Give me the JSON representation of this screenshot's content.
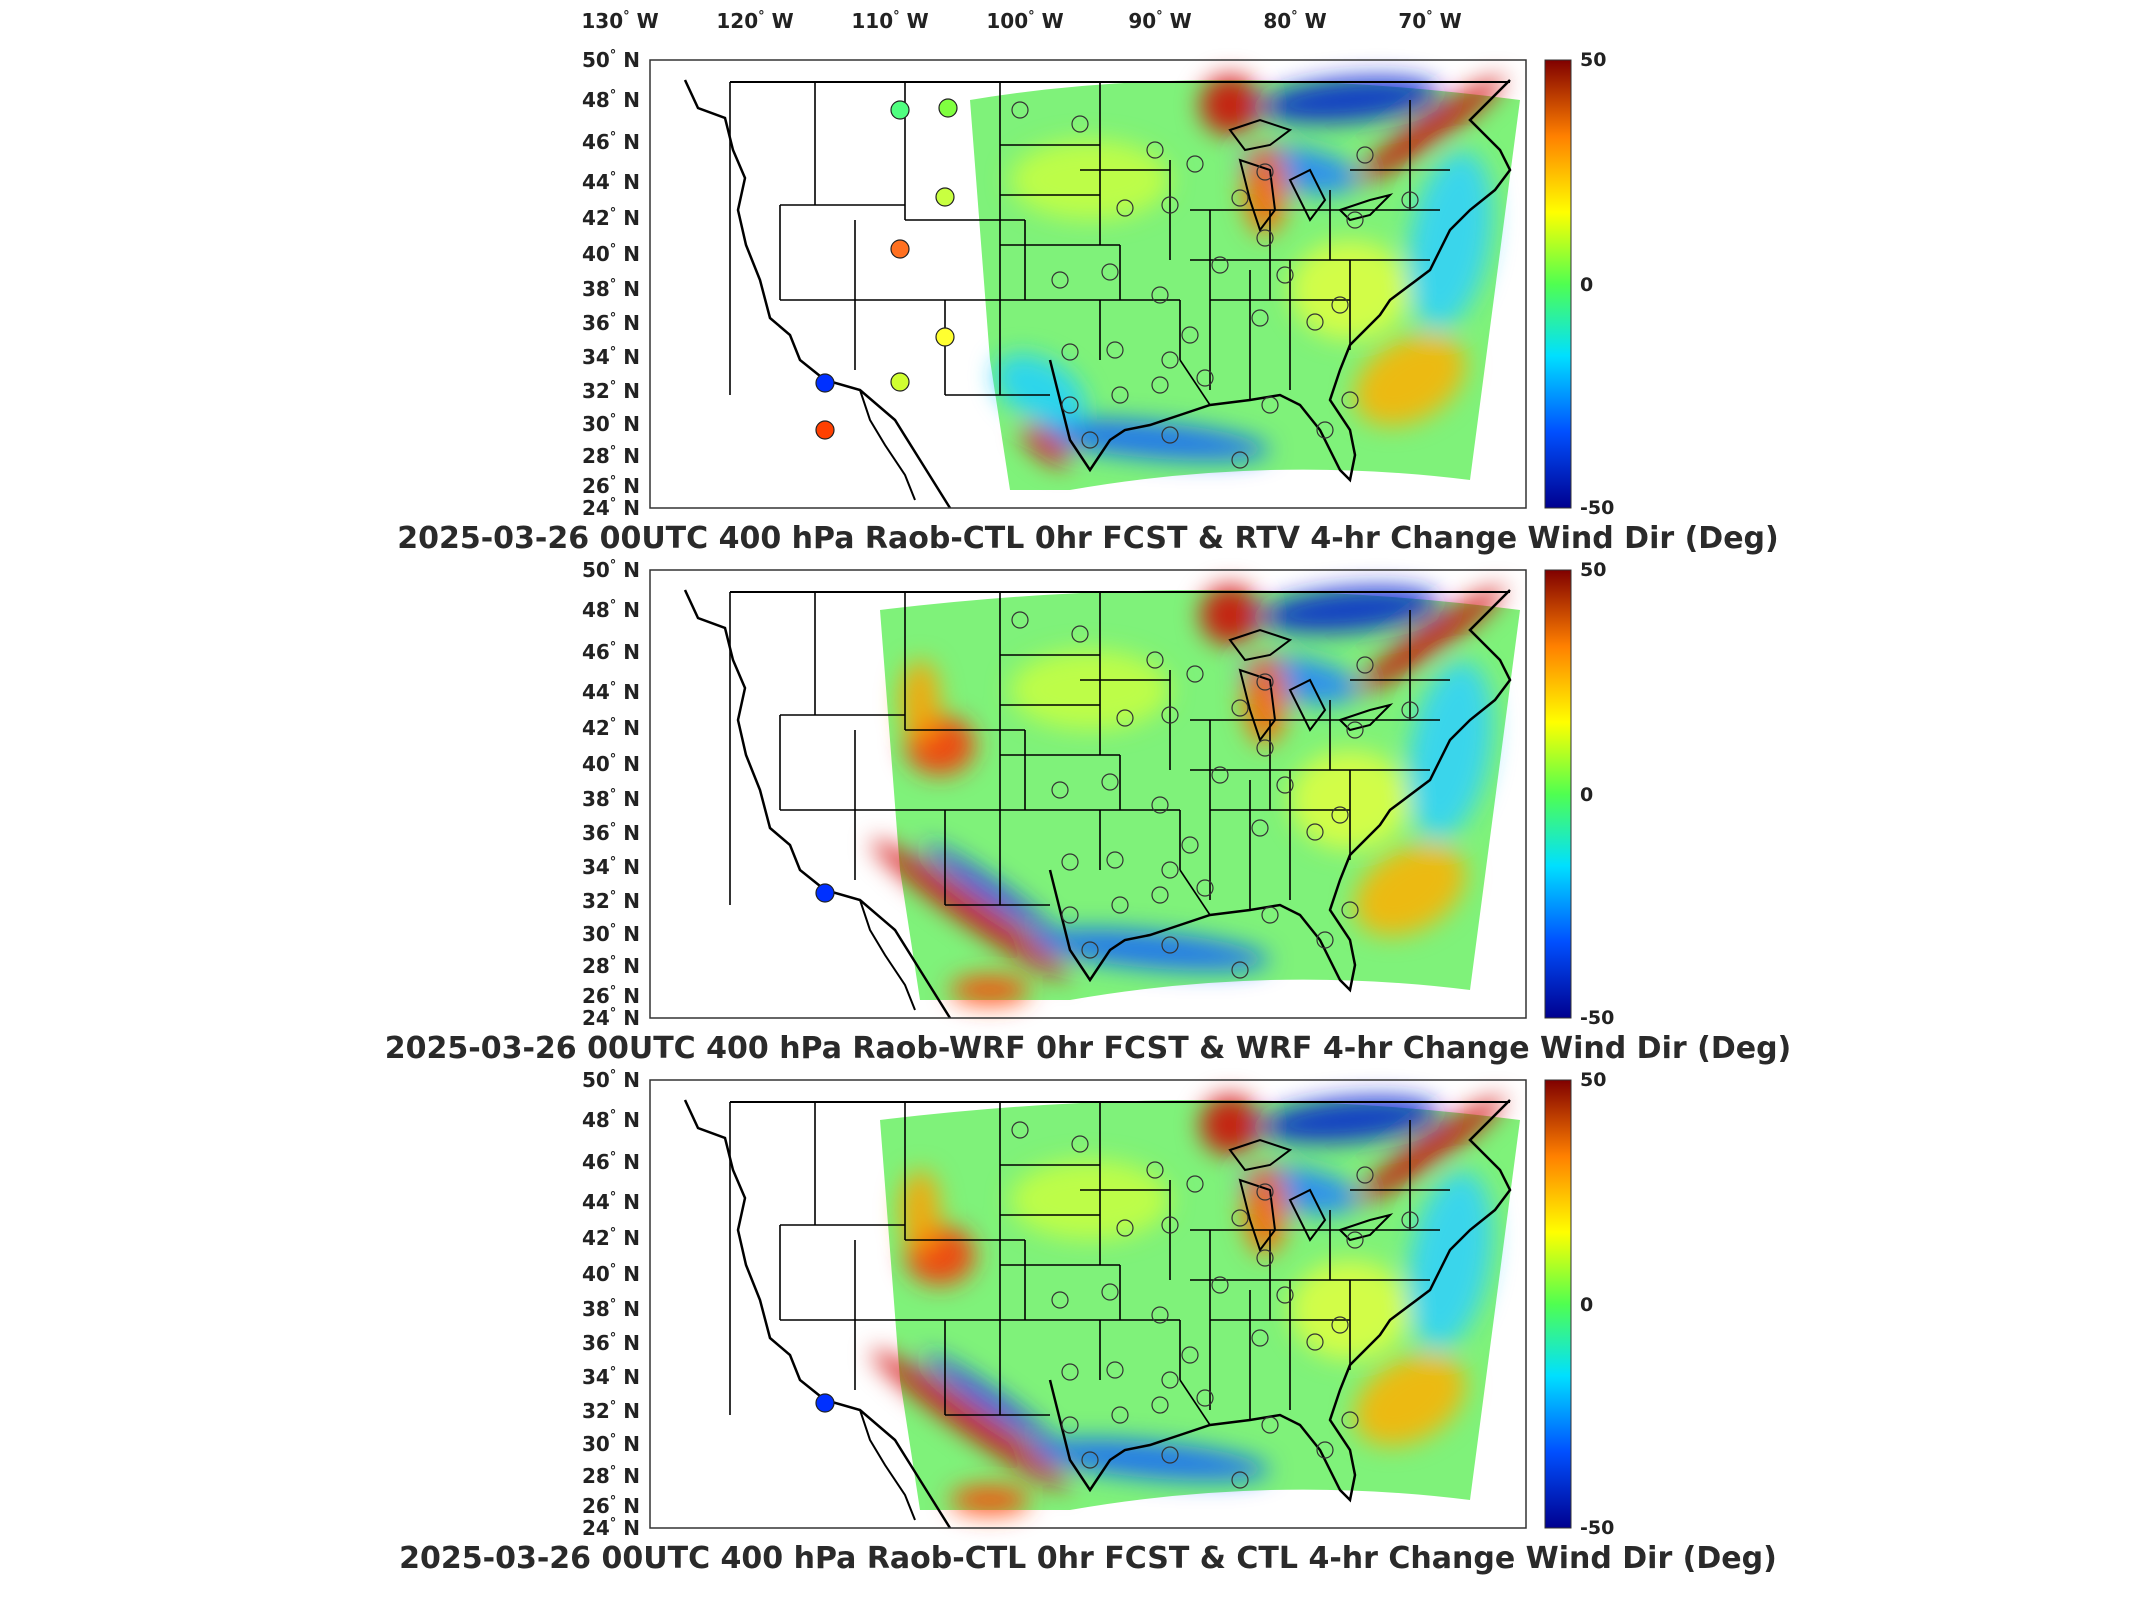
{
  "lon_labels": [
    "130",
    "120",
    "110",
    "100",
    "90",
    "80",
    "70"
  ],
  "lon_hemisphere": "W",
  "lat_labels": [
    "50",
    "48",
    "46",
    "44",
    "42",
    "40",
    "38",
    "36",
    "34",
    "32",
    "30",
    "28",
    "26",
    "24"
  ],
  "lat_hemisphere": "N",
  "degree_symbol": "°",
  "colorbar": {
    "max": "50",
    "mid": "0",
    "min": "-50",
    "colors": [
      "#00008f",
      "#0050ff",
      "#00e0ff",
      "#50ff50",
      "#ffff00",
      "#ff8000",
      "#800000"
    ]
  },
  "panels": [
    {
      "title": "2025-03-26 00UTC 400 hPa Raob-CTL 0hr FCST & RTV 4-hr Change Wind Dir (Deg)"
    },
    {
      "title": "2025-03-26 00UTC 400 hPa Raob-WRF 0hr FCST & WRF 4-hr Change Wind Dir (Deg)"
    },
    {
      "title": "2025-03-26 00UTC 400 hPa Raob-CTL 0hr FCST & CTL 4-hr Change Wind Dir (Deg)"
    }
  ]
}
